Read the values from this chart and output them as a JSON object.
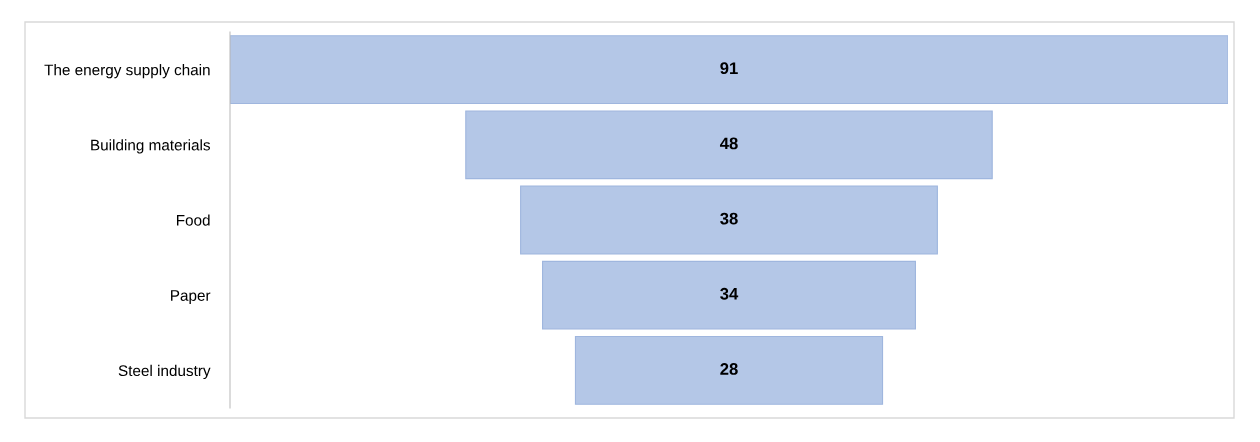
{
  "chart_data": {
    "type": "other",
    "categories": [
      "The energy supply chain",
      "Building materials",
      "Food",
      "Paper",
      "Steel industry"
    ],
    "values": [
      91,
      48,
      38,
      34,
      28
    ],
    "color": "#b4c7e7",
    "data_labels": true
  }
}
